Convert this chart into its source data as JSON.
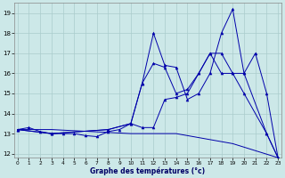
{
  "title": "Graphe des températures (°c)",
  "bg_color": "#cce8e8",
  "grid_color": "#aacccc",
  "line_color": "#0000aa",
  "xlim": [
    -0.3,
    23.3
  ],
  "ylim": [
    11.8,
    19.5
  ],
  "xticks": [
    0,
    1,
    2,
    3,
    4,
    5,
    6,
    7,
    8,
    9,
    10,
    11,
    12,
    13,
    14,
    15,
    16,
    17,
    18,
    19,
    20,
    21,
    22,
    23
  ],
  "yticks": [
    12,
    13,
    14,
    15,
    16,
    17,
    18,
    19
  ],
  "series": [
    {
      "x": [
        0,
        3,
        10,
        14,
        19,
        23
      ],
      "y": [
        13.2,
        13.2,
        13.0,
        13.0,
        12.5,
        11.8
      ]
    },
    {
      "x": [
        0,
        1,
        2,
        3,
        4,
        5,
        6,
        7,
        8,
        9,
        10,
        11,
        12,
        13,
        14,
        15,
        16,
        17,
        18,
        19,
        20,
        21,
        22,
        23
      ],
      "y": [
        13.2,
        13.3,
        13.1,
        13.0,
        13.0,
        13.0,
        12.9,
        12.85,
        13.1,
        13.2,
        13.5,
        15.5,
        18.0,
        16.4,
        16.3,
        14.7,
        15.0,
        16.0,
        18.0,
        19.2,
        16.0,
        17.0,
        15.0,
        11.8
      ]
    },
    {
      "x": [
        0,
        3,
        8,
        10,
        11,
        12,
        13,
        14,
        15,
        16,
        17,
        18,
        19,
        20,
        22,
        23
      ],
      "y": [
        13.2,
        13.0,
        13.2,
        13.5,
        15.5,
        16.5,
        16.3,
        15.0,
        15.2,
        16.0,
        17.0,
        17.0,
        16.0,
        16.0,
        13.0,
        11.8
      ]
    },
    {
      "x": [
        0,
        3,
        8,
        10,
        11,
        12,
        13,
        14,
        15,
        16,
        17,
        18,
        19,
        20,
        22,
        23
      ],
      "y": [
        13.2,
        13.0,
        13.2,
        13.5,
        13.3,
        13.3,
        14.7,
        14.8,
        15.0,
        16.0,
        17.0,
        16.0,
        16.0,
        15.0,
        13.0,
        11.8
      ]
    }
  ]
}
